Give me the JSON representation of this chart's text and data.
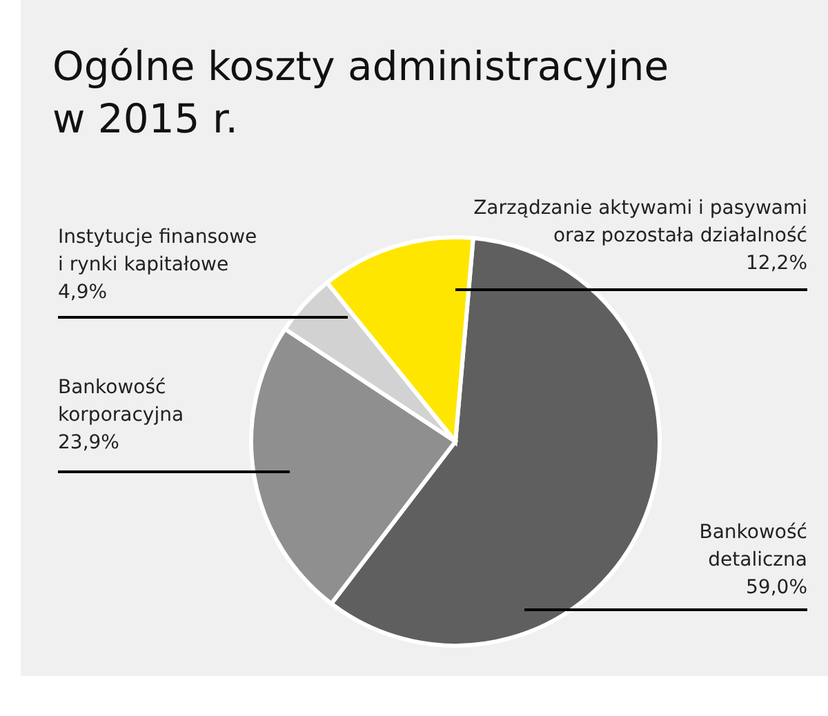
{
  "chart_data": {
    "type": "pie",
    "title": "Ogólne koszty administracyjne\nw 2015 r.",
    "categories": [
      "Bankowość\ndetaliczna",
      "Bankowość\nkorporacyjna",
      "Instytucje finansowe\ni rynki kapitałowe",
      "Zarządzanie aktywami i pasywami\noraz pozostała działalność"
    ],
    "values": [
      59.0,
      23.9,
      4.9,
      12.2
    ],
    "value_labels": [
      "59,0%",
      "23,9%",
      "4,9%",
      "12,2%"
    ],
    "colors": [
      "#5f5f5f",
      "#8f8f8f",
      "#d2d2d2",
      "#ffe600"
    ]
  }
}
